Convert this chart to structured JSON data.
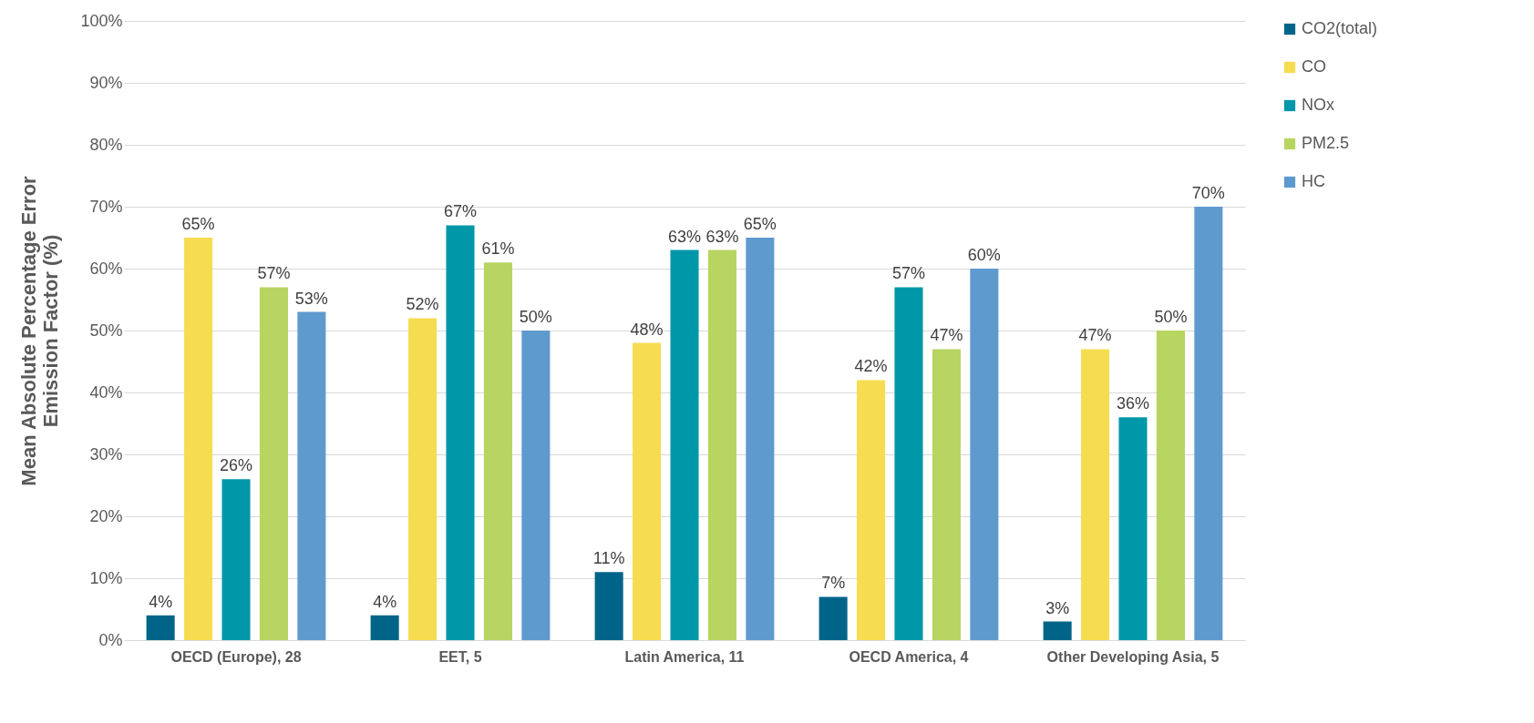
{
  "chart_data": {
    "type": "bar",
    "ylabel": "Mean Absolute Percentage Error Emission Factor (%)",
    "categories": [
      "OECD (Europe), 28",
      "EET, 5",
      "Latin America, 11",
      "OECD America, 4",
      "Other Developing Asia, 5"
    ],
    "series": [
      {
        "name": "CO2(total)",
        "color": "#006489",
        "values": [
          4,
          4,
          11,
          7,
          3
        ],
        "value_labels": [
          "4%",
          "4%",
          "11%",
          "7%",
          "3%"
        ]
      },
      {
        "name": "CO",
        "color": "#f6dc50",
        "values": [
          65,
          52,
          48,
          42,
          47
        ],
        "value_labels": [
          "65%",
          "52%",
          "48%",
          "42%",
          "47%"
        ]
      },
      {
        "name": "NOx",
        "color": "#0097a9",
        "values": [
          26,
          67,
          63,
          57,
          36
        ],
        "value_labels": [
          "26%",
          "67%",
          "63%",
          "57%",
          "36%"
        ]
      },
      {
        "name": "PM2.5",
        "color": "#b8d461",
        "values": [
          57,
          61,
          63,
          47,
          50
        ],
        "value_labels": [
          "57%",
          "61%",
          "63%",
          "47%",
          "50%"
        ]
      },
      {
        "name": "HC",
        "color": "#5f9acf",
        "values": [
          53,
          50,
          65,
          60,
          70
        ],
        "value_labels": [
          "53%",
          "50%",
          "65%",
          "60%",
          "70%"
        ]
      }
    ],
    "ylim": [
      0,
      100
    ],
    "yticks": [
      {
        "value": 0,
        "label": "0%"
      },
      {
        "value": 10,
        "label": "10%"
      },
      {
        "value": 20,
        "label": "20%"
      },
      {
        "value": 30,
        "label": "30%"
      },
      {
        "value": 40,
        "label": "40%"
      },
      {
        "value": 50,
        "label": "50%"
      },
      {
        "value": 60,
        "label": "60%"
      },
      {
        "value": 70,
        "label": "70%"
      },
      {
        "value": 80,
        "label": "80%"
      },
      {
        "value": 90,
        "label": "90%"
      },
      {
        "value": 100,
        "label": "100%"
      }
    ],
    "grid": "y",
    "legend": "right"
  }
}
